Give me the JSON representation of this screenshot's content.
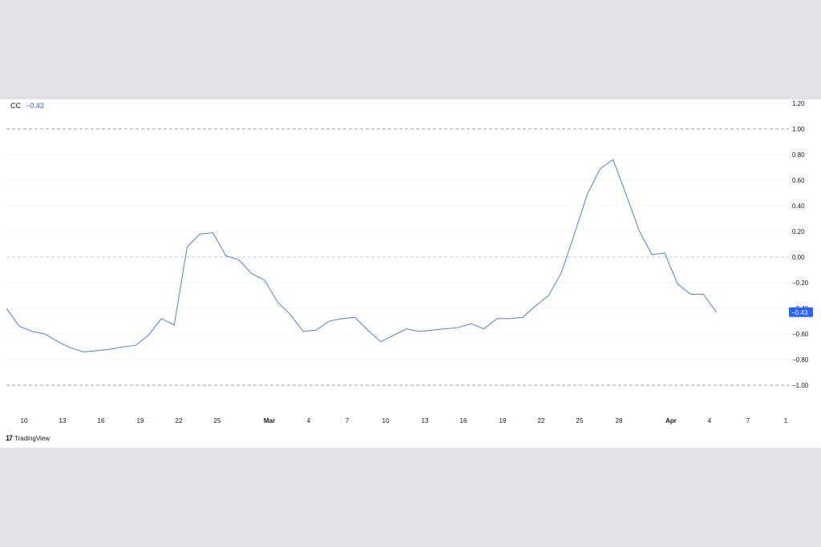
{
  "legend": {
    "symbol": "CC",
    "value": "−0.43"
  },
  "last_value_label": "−0.43",
  "brand": {
    "logo_glyph": "17",
    "name": "TradingView"
  },
  "colors": {
    "line": "#5b8fd6",
    "badge": "#2962ff"
  },
  "chart_data": {
    "type": "line",
    "title": "",
    "xlabel": "",
    "ylabel": "",
    "ylim": [
      -1.2,
      1.2
    ],
    "yticks": [
      "1.20",
      "1.00",
      "0.80",
      "0.60",
      "0.40",
      "0.20",
      "0.00",
      "−0.20",
      "−0.40",
      "−0.60",
      "−0.80",
      "−1.00"
    ],
    "ytick_values": [
      1.2,
      1.0,
      0.8,
      0.6,
      0.4,
      0.2,
      0.0,
      -0.2,
      -0.4,
      -0.6,
      -0.8,
      -1.0
    ],
    "reference_lines": [
      1.0,
      0.0,
      -1.0
    ],
    "xticks": [
      {
        "label": "10",
        "bold": false
      },
      {
        "label": "13",
        "bold": false
      },
      {
        "label": "16",
        "bold": false
      },
      {
        "label": "19",
        "bold": false
      },
      {
        "label": "22",
        "bold": false
      },
      {
        "label": "25",
        "bold": false
      },
      {
        "label": "Mar",
        "bold": true
      },
      {
        "label": "4",
        "bold": false
      },
      {
        "label": "7",
        "bold": false
      },
      {
        "label": "10",
        "bold": false
      },
      {
        "label": "13",
        "bold": false
      },
      {
        "label": "16",
        "bold": false
      },
      {
        "label": "19",
        "bold": false
      },
      {
        "label": "22",
        "bold": false
      },
      {
        "label": "25",
        "bold": false
      },
      {
        "label": "28",
        "bold": false
      },
      {
        "label": "Apr",
        "bold": true
      },
      {
        "label": "4",
        "bold": false
      },
      {
        "label": "7",
        "bold": false
      },
      {
        "label": "1",
        "bold": false
      }
    ],
    "series": [
      {
        "values": [
          -0.4,
          -0.54,
          -0.58,
          -0.6,
          -0.66,
          -0.71,
          -0.74,
          -0.73,
          -0.72,
          -0.7,
          -0.69,
          -0.61,
          -0.48,
          -0.53,
          0.08,
          0.18,
          0.19,
          0.01,
          -0.02,
          -0.13,
          -0.18,
          -0.35,
          -0.45,
          -0.58,
          -0.57,
          -0.5,
          -0.48,
          -0.47,
          -0.57,
          -0.66,
          -0.61,
          -0.56,
          -0.58,
          -0.57,
          -0.56,
          -0.55,
          -0.52,
          -0.56,
          -0.48,
          -0.48,
          -0.47,
          -0.38,
          -0.3,
          -0.12,
          0.18,
          0.49,
          0.69,
          0.76,
          0.49,
          0.21,
          0.02,
          0.03,
          -0.21,
          -0.29,
          -0.29,
          -0.43
        ]
      }
    ]
  }
}
